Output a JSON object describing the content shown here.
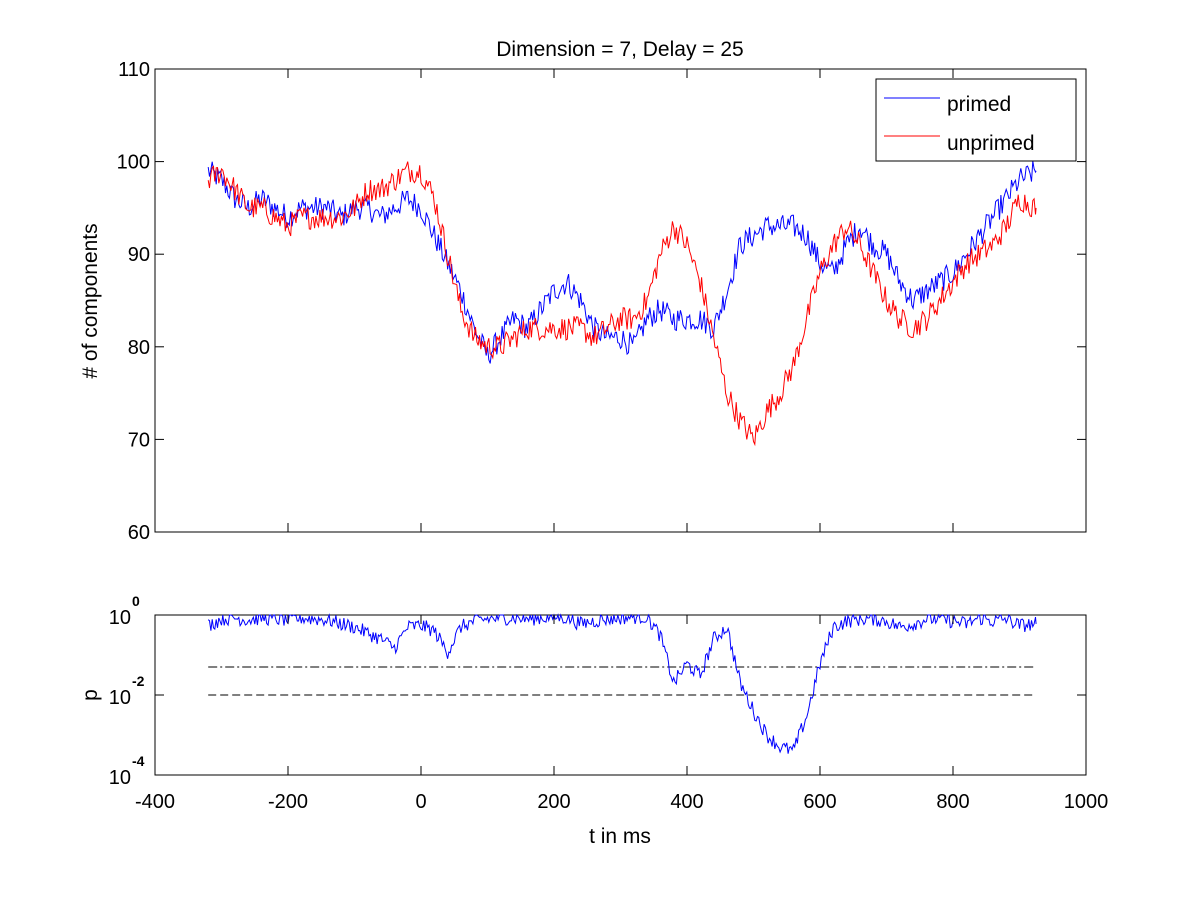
{
  "chart_data": [
    {
      "type": "line",
      "title": "Dimension  = 7, Delay = 25",
      "xlabel": "",
      "ylabel": "# of components",
      "xlim": [
        -400,
        1000
      ],
      "ylim": [
        60,
        110
      ],
      "yticks": [
        "60",
        "70",
        "80",
        "90",
        "100",
        "110"
      ],
      "grid": false,
      "legend_position": "top-right",
      "series": [
        {
          "name": "primed",
          "color": "#0000ff",
          "x": [
            -320,
            -300,
            -280,
            -260,
            -240,
            -220,
            -200,
            -180,
            -160,
            -140,
            -120,
            -100,
            -80,
            -60,
            -40,
            -20,
            0,
            20,
            40,
            60,
            80,
            100,
            120,
            140,
            160,
            180,
            200,
            220,
            240,
            260,
            280,
            300,
            320,
            340,
            360,
            380,
            400,
            420,
            440,
            460,
            480,
            500,
            520,
            540,
            560,
            580,
            600,
            620,
            640,
            660,
            680,
            700,
            720,
            740,
            760,
            780,
            800,
            820,
            840,
            860,
            880,
            900,
            925
          ],
          "y": [
            99,
            98,
            96,
            95,
            96,
            95,
            94,
            95,
            95,
            95,
            94,
            95,
            95,
            94,
            95,
            96,
            95,
            92,
            89,
            86,
            82,
            79,
            81,
            83,
            82,
            84,
            86,
            87,
            85,
            82,
            81,
            81,
            80,
            83,
            84,
            83,
            83,
            83,
            82,
            86,
            91,
            92,
            93,
            93,
            93,
            92,
            89,
            88,
            91,
            93,
            91,
            90,
            87,
            85,
            86,
            87,
            88,
            90,
            92,
            94,
            96,
            98,
            99
          ]
        },
        {
          "name": "unprimed",
          "color": "#ff0000",
          "x": [
            -320,
            -300,
            -280,
            -260,
            -240,
            -220,
            -200,
            -180,
            -160,
            -140,
            -120,
            -100,
            -80,
            -60,
            -40,
            -20,
            0,
            20,
            40,
            60,
            80,
            100,
            120,
            140,
            160,
            180,
            200,
            220,
            240,
            260,
            280,
            300,
            320,
            340,
            360,
            380,
            400,
            420,
            440,
            460,
            480,
            500,
            520,
            540,
            560,
            580,
            600,
            620,
            640,
            660,
            680,
            700,
            720,
            740,
            760,
            780,
            800,
            820,
            840,
            860,
            880,
            900,
            925
          ],
          "y": [
            98,
            99,
            97,
            95,
            95,
            94,
            93,
            94,
            94,
            94,
            94,
            95,
            97,
            97,
            98,
            99,
            99,
            96,
            90,
            84,
            81,
            80,
            80,
            81,
            82,
            82,
            82,
            82,
            82,
            81,
            82,
            83,
            83,
            85,
            90,
            93,
            91,
            87,
            81,
            75,
            72,
            70,
            73,
            75,
            78,
            83,
            88,
            91,
            93,
            91,
            88,
            85,
            83,
            82,
            83,
            85,
            87,
            89,
            90,
            91,
            93,
            96,
            95
          ]
        }
      ]
    },
    {
      "type": "line",
      "title": "",
      "xlabel": "t in ms",
      "ylabel": "p",
      "yscale": "log",
      "xlim": [
        -400,
        1000
      ],
      "ylim": [
        0.0001,
        1
      ],
      "xticks": [
        "-400",
        "-200",
        "0",
        "200",
        "400",
        "600",
        "800",
        "1000"
      ],
      "yticks": [
        {
          "base": "10",
          "exp": "0"
        },
        {
          "base": "10",
          "exp": "-2"
        },
        {
          "base": "10",
          "exp": "-4"
        }
      ],
      "grid": false,
      "threshold_lines": [
        {
          "y": 0.05,
          "style": "dash-dot"
        },
        {
          "y": 0.01,
          "style": "dashed"
        }
      ],
      "series": [
        {
          "color": "#0000ff",
          "x": [
            -320,
            -300,
            -280,
            -260,
            -240,
            -220,
            -200,
            -180,
            -160,
            -140,
            -120,
            -100,
            -80,
            -60,
            -40,
            -20,
            0,
            20,
            40,
            60,
            80,
            100,
            120,
            140,
            160,
            180,
            200,
            220,
            240,
            260,
            280,
            300,
            320,
            340,
            360,
            380,
            400,
            420,
            440,
            460,
            480,
            500,
            520,
            540,
            560,
            580,
            600,
            620,
            640,
            660,
            680,
            700,
            720,
            740,
            760,
            780,
            800,
            820,
            840,
            860,
            880,
            900,
            925
          ],
          "y": [
            0.55,
            0.8,
            0.85,
            0.75,
            0.85,
            0.8,
            0.75,
            0.85,
            0.8,
            0.75,
            0.6,
            0.5,
            0.35,
            0.25,
            0.15,
            0.5,
            0.55,
            0.4,
            0.12,
            0.5,
            0.7,
            0.8,
            0.85,
            0.85,
            0.8,
            0.85,
            0.9,
            0.85,
            0.6,
            0.7,
            0.8,
            0.85,
            0.9,
            0.9,
            0.3,
            0.02,
            0.06,
            0.03,
            0.25,
            0.5,
            0.02,
            0.004,
            0.001,
            0.0005,
            0.0004,
            0.003,
            0.06,
            0.5,
            0.7,
            0.8,
            0.8,
            0.7,
            0.5,
            0.6,
            0.8,
            0.8,
            0.7,
            0.6,
            0.85,
            0.7,
            0.8,
            0.55,
            0.6
          ]
        }
      ]
    }
  ]
}
